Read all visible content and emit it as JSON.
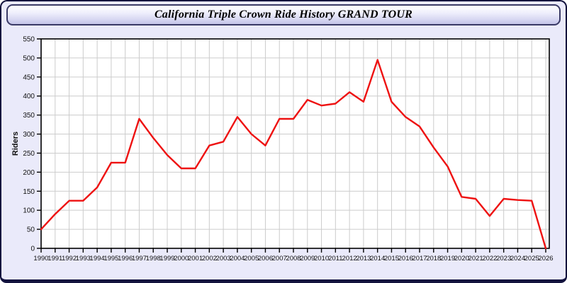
{
  "window": {
    "title": "California Triple Crown Ride History GRAND TOUR"
  },
  "colors": {
    "window_background": "#eaeafa",
    "window_border": "#12123d",
    "plot_background": "#ffffff",
    "plot_frame": "#000000",
    "gridline": "#cccccc",
    "line": "#ee1111",
    "tick_label": "#111111"
  },
  "chart_data": {
    "type": "line",
    "title": "California Triple Crown Ride History GRAND TOUR",
    "xlabel": "",
    "ylabel": "Riders",
    "ylim": [
      0,
      550
    ],
    "ytick_step": 50,
    "grid": true,
    "legend_position": "none",
    "categories": [
      1990,
      1991,
      1992,
      1993,
      1994,
      1995,
      1996,
      1997,
      1998,
      1999,
      2000,
      2001,
      2002,
      2003,
      2004,
      2005,
      2006,
      2007,
      2008,
      2009,
      2010,
      2011,
      2012,
      2013,
      2014,
      2015,
      2016,
      2017,
      2018,
      2019,
      2020,
      2021,
      2022,
      2023,
      2024,
      2025,
      2026
    ],
    "values": [
      50,
      90,
      125,
      125,
      160,
      225,
      225,
      340,
      290,
      245,
      210,
      210,
      270,
      280,
      345,
      300,
      270,
      340,
      340,
      390,
      375,
      380,
      410,
      385,
      495,
      385,
      345,
      320,
      265,
      215,
      135,
      130,
      85,
      130,
      127,
      125,
      0
    ]
  }
}
